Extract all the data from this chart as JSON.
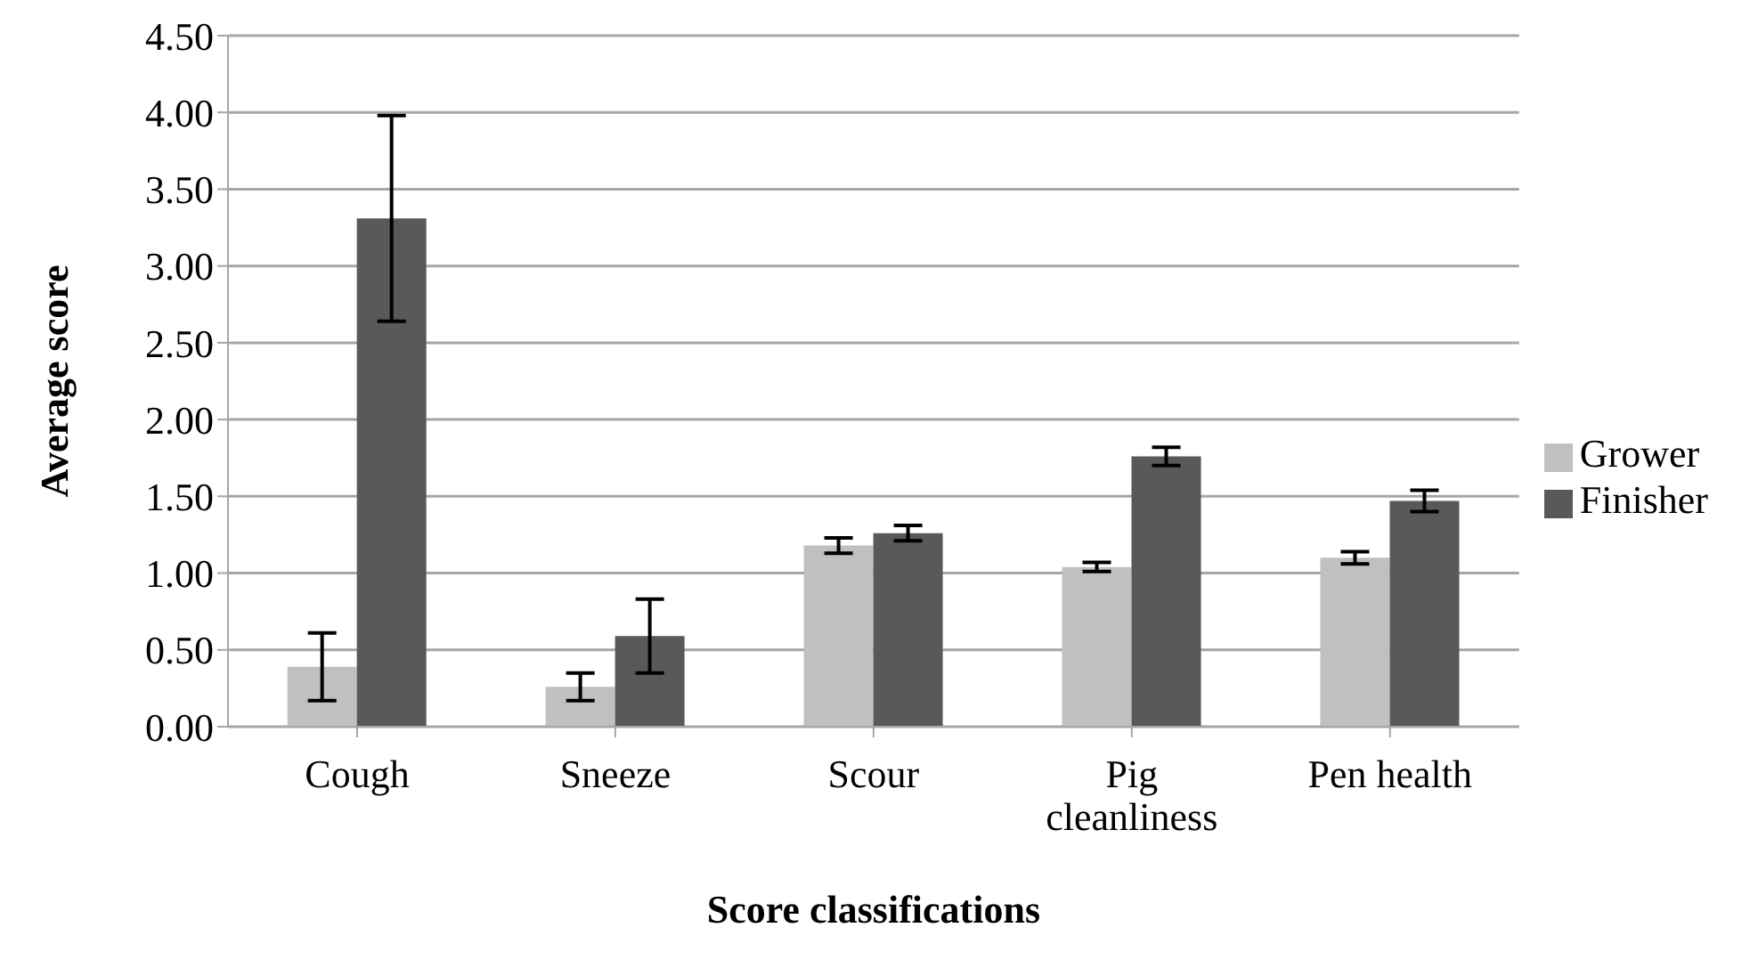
{
  "chart_data": {
    "type": "bar",
    "xlabel": "Score classifications",
    "ylabel": "Average score",
    "categories": [
      "Cough",
      "Sneeze",
      "Scour",
      "Pig cleanliness",
      "Pen health"
    ],
    "series": [
      {
        "name": "Grower",
        "color": "#c0c0c0",
        "values": [
          0.39,
          0.26,
          1.18,
          1.04,
          1.1
        ],
        "errors": [
          0.22,
          0.09,
          0.05,
          0.03,
          0.04
        ]
      },
      {
        "name": "Finisher",
        "color": "#595959",
        "values": [
          3.31,
          0.59,
          1.26,
          1.76,
          1.47
        ],
        "errors": [
          0.67,
          0.24,
          0.05,
          0.06,
          0.07
        ]
      }
    ],
    "ylim": [
      0,
      4.5
    ],
    "yticks": [
      {
        "value": 0,
        "label": "0.00"
      },
      {
        "value": 0.5,
        "label": "0.50"
      },
      {
        "value": 1,
        "label": "1.00"
      },
      {
        "value": 1.5,
        "label": "1.50"
      },
      {
        "value": 2,
        "label": "2.00"
      },
      {
        "value": 2.5,
        "label": "2.50"
      },
      {
        "value": 3,
        "label": "3.00"
      },
      {
        "value": 3.5,
        "label": "3.50"
      },
      {
        "value": 4,
        "label": "4.00"
      },
      {
        "value": 4.5,
        "label": "4.50"
      }
    ],
    "grid": "y",
    "legend": "right"
  }
}
